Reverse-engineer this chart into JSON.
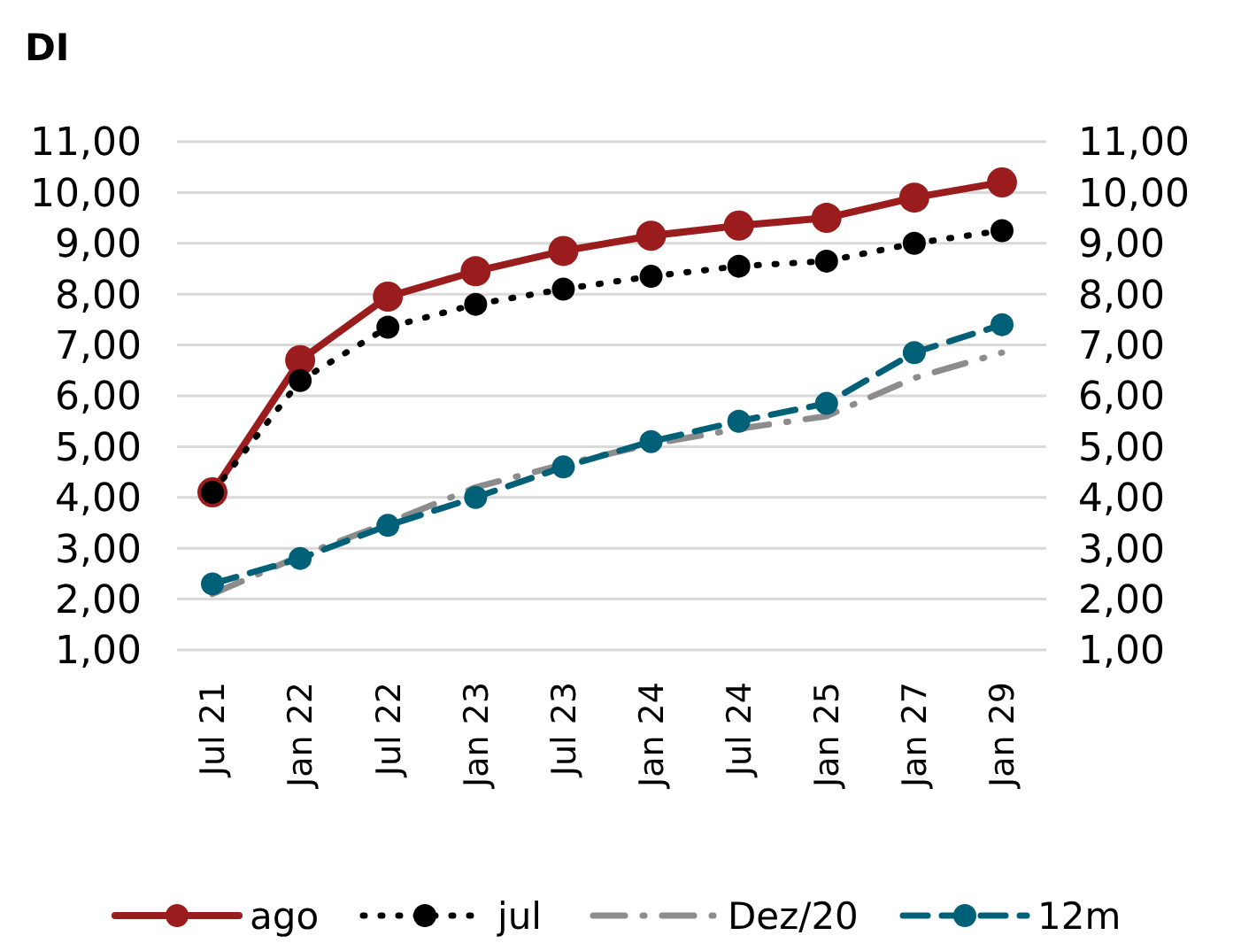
{
  "chart_data": {
    "type": "line",
    "title": "DI",
    "categories": [
      "Jul 21",
      "Jan 22",
      "Jul 22",
      "Jan 23",
      "Jul 23",
      "Jan 24",
      "Jul 24",
      "Jan 25",
      "Jan 27",
      "Jan 29"
    ],
    "series": [
      {
        "name": "ago",
        "color": "#9b1c1c",
        "line_style": "solid",
        "marker": "circle",
        "values": [
          4.1,
          6.7,
          7.95,
          8.45,
          8.85,
          9.15,
          9.35,
          9.5,
          9.9,
          10.2
        ]
      },
      {
        "name": "jul",
        "color": "#000000",
        "line_style": "dotted",
        "marker": "circle",
        "values": [
          4.1,
          6.3,
          7.35,
          7.8,
          8.1,
          8.35,
          8.55,
          8.65,
          9.0,
          9.25
        ]
      },
      {
        "name": "Dez/20",
        "color": "#8c8c8c",
        "line_style": "dashdot",
        "marker": "none",
        "values": [
          2.1,
          2.85,
          3.5,
          4.2,
          4.65,
          5.05,
          5.35,
          5.6,
          6.35,
          6.85
        ]
      },
      {
        "name": "12m",
        "color": "#006078",
        "line_style": "dashed",
        "marker": "circle",
        "values": [
          2.3,
          2.8,
          3.45,
          4.0,
          4.6,
          5.1,
          5.5,
          5.85,
          6.85,
          7.4
        ]
      }
    ],
    "ylim": [
      1,
      11
    ],
    "yticks": [
      {
        "value": 1,
        "label": "1,00"
      },
      {
        "value": 2,
        "label": "2,00"
      },
      {
        "value": 3,
        "label": "3,00"
      },
      {
        "value": 4,
        "label": "4,00"
      },
      {
        "value": 5,
        "label": "5,00"
      },
      {
        "value": 6,
        "label": "6,00"
      },
      {
        "value": 7,
        "label": "7,00"
      },
      {
        "value": 8,
        "label": "8,00"
      },
      {
        "value": 9,
        "label": "9,00"
      },
      {
        "value": 10,
        "label": "10,00"
      },
      {
        "value": 11,
        "label": "11,00"
      }
    ],
    "y2lim": [
      1,
      11
    ],
    "y2ticks": [
      {
        "value": 1,
        "label": "1,00"
      },
      {
        "value": 2,
        "label": "2,00"
      },
      {
        "value": 3,
        "label": "3,00"
      },
      {
        "value": 4,
        "label": "4,00"
      },
      {
        "value": 5,
        "label": "5,00"
      },
      {
        "value": 6,
        "label": "6,00"
      },
      {
        "value": 7,
        "label": "7,00"
      },
      {
        "value": 8,
        "label": "8,00"
      },
      {
        "value": 9,
        "label": "9,00"
      },
      {
        "value": 10,
        "label": "10,00"
      },
      {
        "value": 11,
        "label": "11,00"
      }
    ],
    "grid": "y",
    "legend": "bottom"
  }
}
